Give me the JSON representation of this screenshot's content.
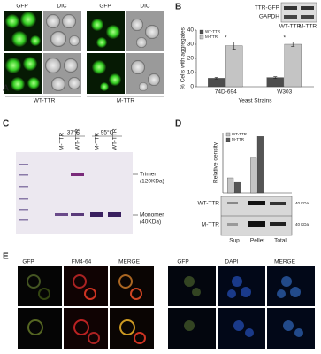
{
  "panels": {
    "A": {
      "label": "A",
      "headers": [
        "GFP",
        "DIC",
        "GFP",
        "DIC"
      ],
      "groups": [
        "WT-TTR",
        "M-TTR"
      ]
    },
    "B": {
      "label": "B",
      "inset_rows": [
        "TTR-GFP",
        "GAPDH"
      ],
      "inset_cols": [
        "WT-TTR",
        "M-TTR"
      ]
    },
    "C": {
      "label": "C",
      "temps": [
        "37°C",
        "95°C"
      ],
      "lanes": [
        "M-TTR",
        "WT-TTR",
        "M-TTR",
        "WT-TTR"
      ],
      "bands": [
        "Trimer",
        "(120KDa)",
        "Monomer",
        "(40KDa)"
      ]
    },
    "D": {
      "label": "D",
      "blot_rows": [
        "WT-TTR",
        "M-TTR"
      ],
      "markers": [
        "40 KDa",
        "40 KDa"
      ]
    },
    "E": {
      "label": "E",
      "headers_left": [
        "GFP",
        "FM4-64",
        "MERGE"
      ],
      "headers_right": [
        "GFP",
        "DAPI",
        "MERGE"
      ]
    }
  },
  "chart_data": [
    {
      "type": "bar",
      "ylabel": "% Cells with aggregates",
      "xlabel": "Yeast Strains",
      "categories": [
        "74D-694",
        "W303"
      ],
      "series": [
        {
          "name": "WT-TTR",
          "color": "#4d4d4d",
          "values": [
            6,
            6.5
          ],
          "errors": [
            0.5,
            0.6
          ]
        },
        {
          "name": "M-TTR",
          "color": "#c4c4c4",
          "values": [
            29,
            30
          ],
          "errors": [
            2.5,
            1.5
          ]
        }
      ],
      "annotations": [
        "*",
        "*"
      ],
      "ylim": [
        0,
        40
      ],
      "yticks": [
        0,
        10,
        20,
        30,
        40
      ],
      "legend": "upper left"
    },
    {
      "type": "bar",
      "ylabel": "Relative density",
      "categories": [
        "Sup",
        "Pellet",
        "Total"
      ],
      "series": [
        {
          "name": "WT-TTR",
          "color": "#c4c4c4",
          "values": [
            40,
            95,
            null
          ]
        },
        {
          "name": "M-TTR",
          "color": "#555555",
          "values": [
            28,
            150,
            null
          ]
        }
      ],
      "ylim": [
        0,
        160
      ],
      "legend": "upper left"
    }
  ]
}
